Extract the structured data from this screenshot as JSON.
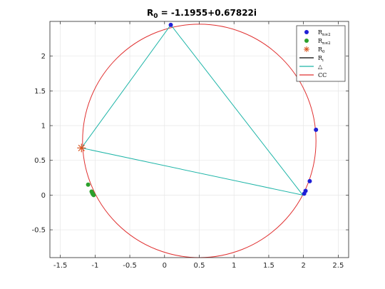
{
  "chart_data": {
    "type": "scatter",
    "title": "R",
    "title_subscript": "0",
    "title_suffix": " = -1.1955+0.67822i",
    "xlabel": "",
    "ylabel": "",
    "xlim": [
      -1.65,
      2.65
    ],
    "ylim": [
      -0.9,
      2.5
    ],
    "xticks": [
      -1.5,
      -1,
      -0.5,
      0,
      0.5,
      1,
      1.5,
      2,
      2.5
    ],
    "xtick_labels": [
      "-1.5",
      "-1",
      "-0.5",
      "0",
      "0.5",
      "1",
      "1.5",
      "2",
      "2.5"
    ],
    "yticks": [
      -0.5,
      0,
      0.5,
      1,
      1.5,
      2
    ],
    "ytick_labels": [
      "-0.5",
      "0",
      "0.5",
      "1",
      "1.5",
      "2"
    ],
    "grid": true,
    "legend_position": "top-right",
    "legend": [
      {
        "name": "R",
        "sub": "n≥2",
        "marker": "dot",
        "color": "#1f1fd6"
      },
      {
        "name": "R",
        "sub": "n≤2",
        "marker": "dot",
        "color": "#2ca02c"
      },
      {
        "name": "R",
        "sub": "0",
        "marker": "asterisk",
        "color": "#d9531e"
      },
      {
        "name": "R",
        "sub": "i",
        "marker": "line",
        "color": "#000000"
      },
      {
        "name": "△",
        "sub": "",
        "marker": "line",
        "color": "#1fb5a8"
      },
      {
        "name": "CC",
        "sub": "",
        "marker": "line",
        "color": "#e03030"
      }
    ],
    "circle": {
      "center": [
        0.5,
        0.78
      ],
      "radius": 1.68,
      "color": "#e03030"
    },
    "triangle": {
      "points": [
        [
          -1.1955,
          0.67822
        ],
        [
          0.09,
          2.45
        ],
        [
          1.99,
          0.0
        ]
      ],
      "color": "#1fb5a8"
    },
    "series": [
      {
        "name": "R_{n≥2}",
        "color": "#1f1fd6",
        "points": [
          [
            0.09,
            2.45
          ],
          [
            2.18,
            0.94
          ],
          [
            2.09,
            0.2
          ],
          [
            2.03,
            0.06
          ],
          [
            2.01,
            0.02
          ]
        ]
      },
      {
        "name": "R_{n≤2}",
        "color": "#2ca02c",
        "points": [
          [
            -1.1,
            0.15
          ],
          [
            -1.05,
            0.05
          ],
          [
            -1.04,
            0.03
          ],
          [
            -1.03,
            0.01
          ],
          [
            -1.02,
            0.0
          ],
          [
            -1.035,
            0.02
          ]
        ]
      },
      {
        "name": "R_0",
        "color": "#d9531e",
        "points": [
          [
            -1.1955,
            0.67822
          ]
        ]
      }
    ]
  }
}
